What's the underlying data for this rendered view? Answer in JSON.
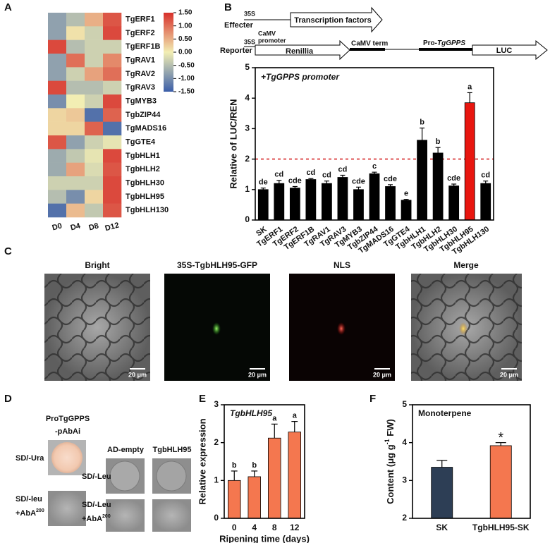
{
  "panel_letters": [
    "A",
    "B",
    "C",
    "D",
    "E",
    "F"
  ],
  "chart_data": [
    {
      "type": "heatmap",
      "rows": [
        "TgERF1",
        "TgERF2",
        "TgERF1B",
        "TgRAV1",
        "TgRAV2",
        "TgRAV3",
        "TgMYB3",
        "TgbZIP44",
        "TgMADS16",
        "TgGTE4",
        "TgbHLH1",
        "TgbHLH2",
        "TgbHLH30",
        "TgbHLH95",
        "TgbHLH130"
      ],
      "columns": [
        "D0",
        "D4",
        "D8",
        "D12"
      ],
      "values": [
        [
          -0.8,
          -0.5,
          0.5,
          1.2
        ],
        [
          -0.8,
          0.1,
          -0.3,
          1.3
        ],
        [
          1.3,
          -0.5,
          -0.3,
          -0.3
        ],
        [
          -0.8,
          1.0,
          -0.3,
          0.8
        ],
        [
          -0.8,
          -0.3,
          0.6,
          1.0
        ],
        [
          1.3,
          -0.5,
          -0.5,
          -0.3
        ],
        [
          -1.0,
          0.0,
          -0.3,
          1.3
        ],
        [
          0.2,
          0.3,
          -1.3,
          1.1
        ],
        [
          0.2,
          0.2,
          1.1,
          -1.3
        ],
        [
          1.2,
          -0.8,
          -0.3,
          -0.1
        ],
        [
          -0.7,
          -0.4,
          -0.1,
          1.3
        ],
        [
          -0.7,
          0.6,
          -0.2,
          1.2
        ],
        [
          -0.3,
          -0.3,
          -0.3,
          1.3
        ],
        [
          -0.5,
          -1.0,
          0.2,
          1.3
        ],
        [
          -1.3,
          0.4,
          -0.4,
          1.2
        ]
      ],
      "colorbar": {
        "lim": [
          -1.5,
          1.5
        ],
        "colors": [
          "#3b5ea9",
          "#f2eeb3",
          "#d7302b"
        ],
        "ticks": [
          {
            "value": 1.5,
            "label": "1.50"
          },
          {
            "value": 1.0,
            "label": "1.00"
          },
          {
            "value": 0.5,
            "label": "0.50"
          },
          {
            "value": 0,
            "label": "0.00"
          },
          {
            "value": -0.5,
            "label": "-0.50"
          },
          {
            "value": -1.0,
            "label": "-1.00"
          },
          {
            "value": -1.5,
            "label": "-1.50"
          }
        ]
      }
    },
    {
      "type": "bar",
      "annotation": "+TgGPPS promoter",
      "ylabel": "Relative of LUC/REN",
      "categories": [
        "SK",
        "TgERF1",
        "TgERF2",
        "TgERF1B",
        "TgRAV1",
        "TgRAV3",
        "TgMYB3",
        "TgbZIP44",
        "TgMADS16",
        "TgGTE4",
        "TgbHLH1",
        "TgbHLH2",
        "TgbHLH30",
        "TgbHLH95",
        "TgbHLH130"
      ],
      "values": [
        1.0,
        1.2,
        1.05,
        1.33,
        1.2,
        1.4,
        1.0,
        1.52,
        1.1,
        0.65,
        2.62,
        2.2,
        1.12,
        3.85,
        1.2
      ],
      "errors": [
        0.05,
        0.1,
        0.05,
        0.03,
        0.08,
        0.07,
        0.08,
        0.05,
        0.06,
        0.03,
        0.4,
        0.18,
        0.06,
        0.33,
        0.08
      ],
      "letters": [
        "de",
        "cd",
        "cde",
        "cd",
        "cd",
        "cd",
        "cde",
        "c",
        "cde",
        "e",
        "b",
        "b",
        "cde",
        "a",
        "cd"
      ],
      "colors": [
        "#000000",
        "#000000",
        "#000000",
        "#000000",
        "#000000",
        "#000000",
        "#000000",
        "#000000",
        "#000000",
        "#000000",
        "#000000",
        "#000000",
        "#000000",
        "#e8160f",
        "#000000"
      ],
      "ylim": [
        0,
        5
      ],
      "yticks": [
        0,
        1,
        2,
        3,
        4,
        5
      ],
      "reference_line": 2,
      "reference_color": "#d62728"
    },
    {
      "type": "bar",
      "title": "TgbHLH95",
      "xlabel": "Ripening time (days)",
      "ylabel": "Relative expression",
      "categories": [
        "0",
        "4",
        "8",
        "12"
      ],
      "values": [
        1.0,
        1.1,
        2.12,
        2.28
      ],
      "errors": [
        0.25,
        0.15,
        0.37,
        0.28
      ],
      "letters": [
        "b",
        "b",
        "a",
        "a"
      ],
      "color": "#f4774f",
      "ylim": [
        0,
        3
      ],
      "yticks": [
        0,
        1,
        2,
        3
      ]
    },
    {
      "type": "bar",
      "title": "Monoterpene",
      "ylabel": {
        "text": "Content (μg g",
        "sup": "-1",
        "tail": " FW)"
      },
      "categories": [
        "SK",
        "TgbHLH95-SK"
      ],
      "values": [
        3.35,
        3.92
      ],
      "errors": [
        0.18,
        0.08
      ],
      "letters": [
        null,
        "*"
      ],
      "colors": [
        "#2d3e55",
        "#f4774f"
      ],
      "ylim": [
        2,
        5
      ],
      "yticks": [
        2,
        3,
        4,
        5
      ]
    }
  ],
  "construct": {
    "effecter_promoter": "35S",
    "effecter": "Effecter",
    "effecter_gene": "Transcription factors",
    "reporter_promoter": [
      "CaMV",
      "35S",
      "promoter"
    ],
    "reporter": "Reporter",
    "renilla": "Renillia",
    "term": "CaMV term",
    "pro": "Pro-",
    "pro_gene": "TgGPPS",
    "luc": "LUC"
  },
  "microscopy": {
    "titles": [
      "Bright",
      "35S-TgbHLH95-GFP",
      "NLS",
      "Merge"
    ],
    "scale_bar": "20 μm"
  },
  "yeast": {
    "bait": "ProTgGPPS",
    "bait_vector": "-pAbAi",
    "prey_empty": "AD-empty",
    "prey": "TgbHLH95",
    "ura": "SD/-Ura",
    "leu": "SD/-Leu",
    "leu_lower": "SD/-leu",
    "aba": "+AbA",
    "aba_sup": "200"
  }
}
